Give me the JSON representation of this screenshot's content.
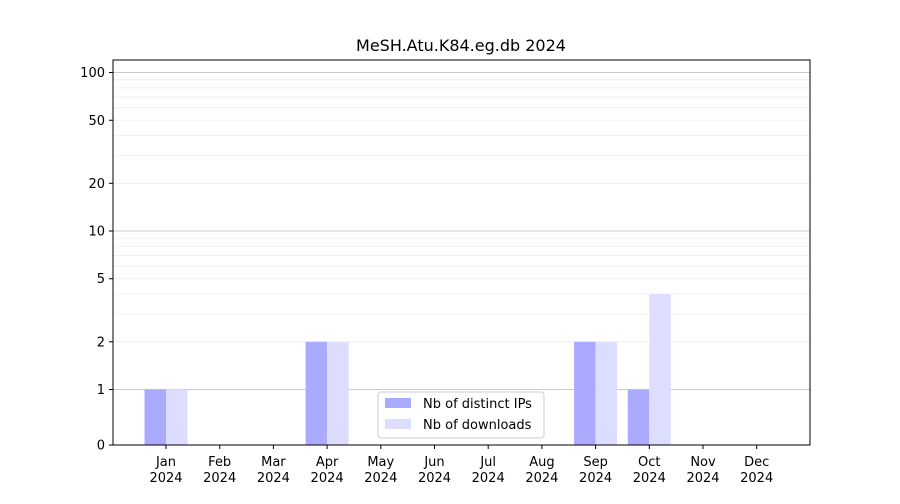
{
  "chart_data": {
    "type": "bar",
    "title": "MeSH.Atu.K84.eg.db 2024",
    "xlabel": "",
    "ylabel": "",
    "y_scale": "symlog",
    "ylim": [
      0,
      120
    ],
    "y_ticks": [
      0,
      1,
      2,
      5,
      10,
      20,
      50,
      100
    ],
    "grid": "horizontal",
    "legend_position": "bottom-center",
    "categories": [
      [
        "Jan",
        "2024"
      ],
      [
        "Feb",
        "2024"
      ],
      [
        "Mar",
        "2024"
      ],
      [
        "Apr",
        "2024"
      ],
      [
        "May",
        "2024"
      ],
      [
        "Jun",
        "2024"
      ],
      [
        "Jul",
        "2024"
      ],
      [
        "Aug",
        "2024"
      ],
      [
        "Sep",
        "2024"
      ],
      [
        "Oct",
        "2024"
      ],
      [
        "Nov",
        "2024"
      ],
      [
        "Dec",
        "2024"
      ]
    ],
    "series": [
      {
        "name": "Nb of distinct IPs",
        "color": "#aaaaff",
        "values": [
          1,
          0,
          0,
          2,
          0,
          0,
          0,
          0,
          2,
          1,
          0,
          0
        ]
      },
      {
        "name": "Nb of downloads",
        "color": "#ddddff",
        "values": [
          1,
          0,
          0,
          2,
          0,
          0,
          0,
          0,
          2,
          4,
          0,
          0
        ]
      }
    ]
  }
}
